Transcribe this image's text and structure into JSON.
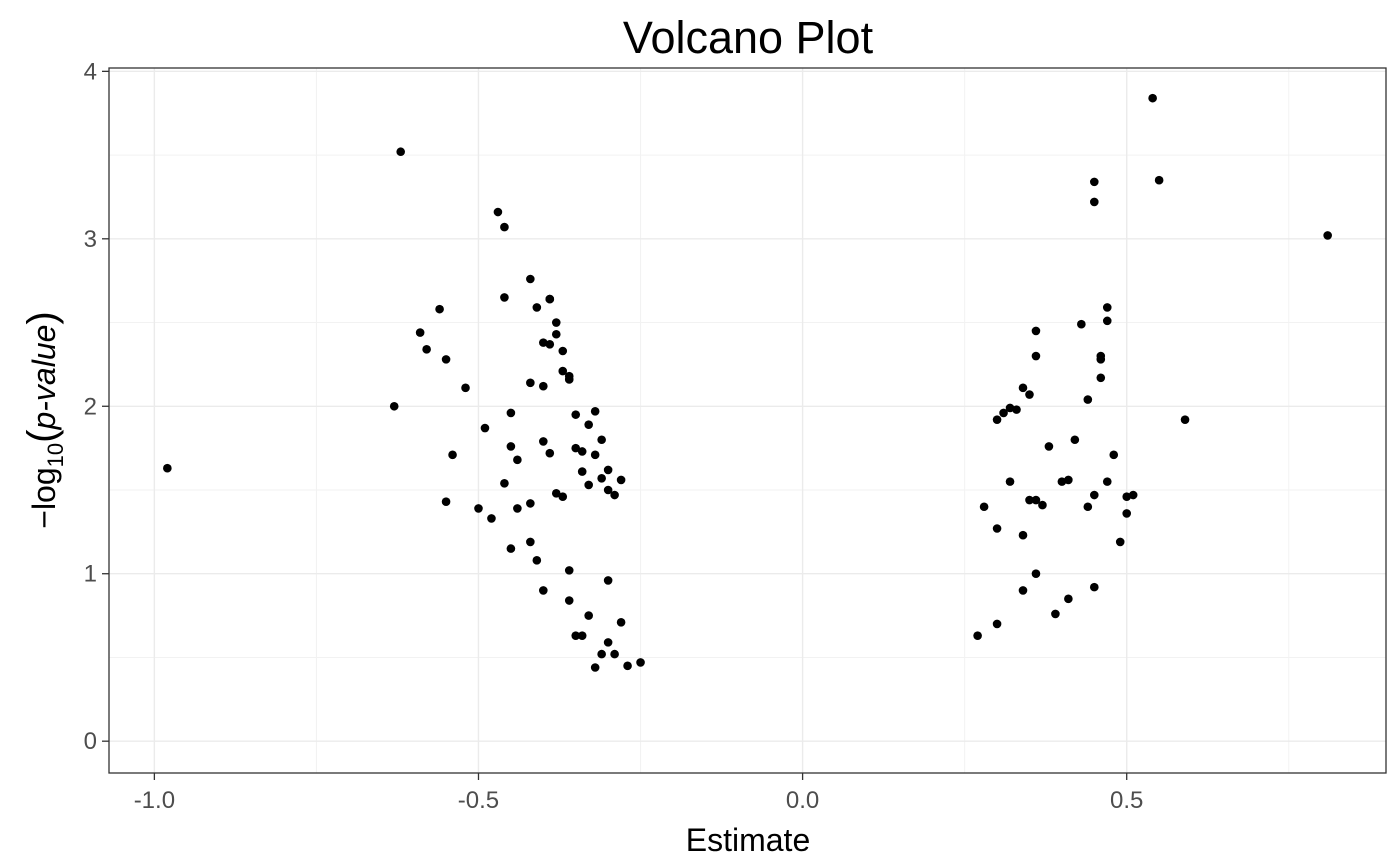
{
  "chart_data": {
    "type": "scatter",
    "title": "Volcano Plot",
    "xlabel": "Estimate",
    "ylabel": {
      "prefix": "−log",
      "subscript": "10",
      "open_paren": "(",
      "italic": "p-value",
      "close_paren": ")"
    },
    "xlim": [
      -1.07,
      0.9
    ],
    "ylim": [
      -0.19,
      4.02
    ],
    "xticks": [
      -1.0,
      -0.5,
      0.0,
      0.5
    ],
    "xtick_labels": [
      "-1.0",
      "-0.5",
      "0.0",
      "0.5"
    ],
    "yticks": [
      0,
      1,
      2,
      3,
      4
    ],
    "ytick_labels": [
      "0",
      "1",
      "2",
      "3",
      "4"
    ],
    "grid": true,
    "legend": "none",
    "point_color": "#000000",
    "series": [
      {
        "x": [
          -0.98,
          -0.62,
          -0.63,
          -0.47,
          -0.46,
          -0.59,
          -0.58,
          -0.56,
          -0.55,
          -0.54,
          -0.55,
          -0.52,
          -0.5,
          -0.49,
          -0.48,
          -0.46,
          -0.46,
          -0.45,
          -0.45,
          -0.44,
          -0.45,
          -0.44,
          -0.42,
          -0.42,
          -0.41,
          -0.4,
          -0.4,
          -0.39,
          -0.39,
          -0.39,
          -0.38,
          -0.38,
          -0.37,
          -0.37,
          -0.36,
          -0.36,
          -0.35,
          -0.35,
          -0.34,
          -0.34,
          -0.33,
          -0.33,
          -0.32,
          -0.32,
          -0.31,
          -0.31,
          -0.3,
          -0.3,
          -0.29,
          -0.28,
          -0.42,
          -0.42,
          -0.41,
          -0.4,
          -0.4,
          -0.39,
          -0.38,
          -0.37,
          -0.36,
          -0.36,
          -0.35,
          -0.34,
          -0.33,
          -0.32,
          -0.31,
          -0.3,
          -0.3,
          -0.29,
          -0.28,
          -0.27,
          -0.25,
          0.54,
          0.55,
          0.45,
          0.45,
          0.81,
          0.59,
          0.47,
          0.47,
          0.46,
          0.46,
          0.46,
          0.43,
          0.44,
          0.36,
          0.36,
          0.35,
          0.34,
          0.33,
          0.32,
          0.31,
          0.3,
          0.42,
          0.41,
          0.4,
          0.44,
          0.45,
          0.47,
          0.48,
          0.5,
          0.5,
          0.49,
          0.51,
          0.38,
          0.37,
          0.36,
          0.35,
          0.34,
          0.32,
          0.3,
          0.28,
          0.45,
          0.41,
          0.39,
          0.36,
          0.34,
          0.3,
          0.27
        ],
        "y": [
          1.63,
          3.52,
          2.0,
          3.16,
          3.07,
          2.44,
          2.34,
          2.58,
          2.28,
          1.71,
          1.43,
          2.11,
          1.39,
          1.87,
          1.33,
          2.65,
          1.54,
          1.96,
          1.76,
          1.68,
          1.15,
          1.39,
          2.76,
          2.14,
          2.59,
          2.38,
          2.12,
          2.64,
          2.64,
          2.37,
          2.5,
          2.43,
          2.33,
          2.21,
          2.16,
          2.18,
          1.95,
          1.75,
          1.73,
          1.61,
          1.89,
          1.53,
          1.71,
          1.97,
          1.8,
          1.57,
          1.62,
          1.5,
          1.47,
          1.56,
          1.42,
          1.19,
          1.08,
          0.9,
          1.79,
          1.72,
          1.48,
          1.46,
          1.02,
          0.84,
          0.63,
          0.63,
          0.75,
          0.44,
          0.52,
          0.96,
          0.59,
          0.52,
          0.71,
          0.45,
          0.47,
          3.84,
          3.35,
          3.34,
          3.22,
          3.02,
          1.92,
          2.59,
          2.51,
          2.3,
          2.28,
          2.17,
          2.49,
          2.04,
          2.45,
          2.3,
          2.07,
          2.11,
          1.98,
          1.99,
          1.96,
          1.92,
          1.8,
          1.56,
          1.55,
          1.4,
          1.47,
          1.55,
          1.71,
          1.46,
          1.36,
          1.19,
          1.47,
          1.76,
          1.41,
          1.44,
          1.44,
          1.23,
          1.55,
          1.27,
          1.4,
          0.92,
          0.85,
          0.76,
          1.0,
          0.9,
          0.7,
          0.63
        ]
      }
    ]
  }
}
